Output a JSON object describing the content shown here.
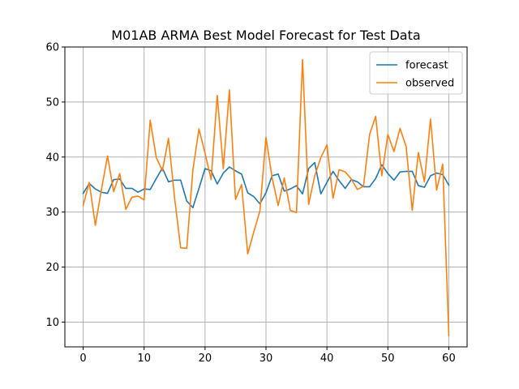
{
  "chart_data": {
    "type": "line",
    "title": "M01AB ARMA Best Model Forecast for Test Data",
    "xlabel": "",
    "ylabel": "",
    "xlim": [
      -3,
      63
    ],
    "ylim": [
      5.5,
      60
    ],
    "grid": true,
    "legend_position": "top-right",
    "xticks": [
      0,
      10,
      20,
      30,
      40,
      50,
      60
    ],
    "yticks": [
      10,
      20,
      30,
      40,
      50,
      60
    ],
    "x": [
      0,
      1,
      2,
      3,
      4,
      5,
      6,
      7,
      8,
      9,
      10,
      11,
      12,
      13,
      14,
      15,
      16,
      17,
      18,
      19,
      20,
      21,
      22,
      23,
      24,
      25,
      26,
      27,
      28,
      29,
      30,
      31,
      32,
      33,
      34,
      35,
      36,
      37,
      38,
      39,
      40,
      41,
      42,
      43,
      44,
      45,
      46,
      47,
      48,
      49,
      50,
      51,
      52,
      53,
      54,
      55,
      56,
      57,
      58,
      59,
      60
    ],
    "series": [
      {
        "name": "forecast",
        "color": "#1f77b4",
        "values": [
          33.4,
          35.2,
          34.2,
          33.6,
          33.4,
          35.9,
          36.0,
          34.3,
          34.3,
          33.6,
          34.2,
          34.1,
          36.1,
          38.0,
          35.5,
          35.8,
          35.8,
          32.0,
          30.8,
          34.3,
          37.9,
          37.5,
          35.1,
          37.1,
          38.2,
          37.5,
          36.9,
          33.5,
          32.8,
          31.5,
          33.5,
          36.6,
          36.9,
          33.8,
          34.2,
          34.8,
          33.3,
          37.9,
          39.0,
          33.3,
          35.4,
          37.4,
          35.7,
          34.3,
          35.9,
          35.5,
          34.6,
          34.6,
          36.1,
          38.6,
          37.0,
          35.8,
          37.3,
          37.4,
          37.4,
          34.8,
          34.5,
          36.6,
          37.1,
          36.8,
          34.9
        ]
      },
      {
        "name": "observed",
        "color": "#ff7f0e",
        "values": [
          31.2,
          35.4,
          27.6,
          34.1,
          40.2,
          33.7,
          37.0,
          30.5,
          32.7,
          32.9,
          32.2,
          46.7,
          39.9,
          37.5,
          43.4,
          32.6,
          23.5,
          23.4,
          37.6,
          45.1,
          40.7,
          35.9,
          51.2,
          37.9,
          52.2,
          32.3,
          35.0,
          22.4,
          26.4,
          30.2,
          43.6,
          36.3,
          31.2,
          36.2,
          30.3,
          29.9,
          57.7,
          31.4,
          36.6,
          39.9,
          42.2,
          32.5,
          37.7,
          37.3,
          36.0,
          34.1,
          34.7,
          44.1,
          47.4,
          36.6,
          44.1,
          41.0,
          45.2,
          41.9,
          30.3,
          40.8,
          35.5,
          46.9,
          34.0,
          38.7,
          7.6
        ]
      }
    ]
  }
}
